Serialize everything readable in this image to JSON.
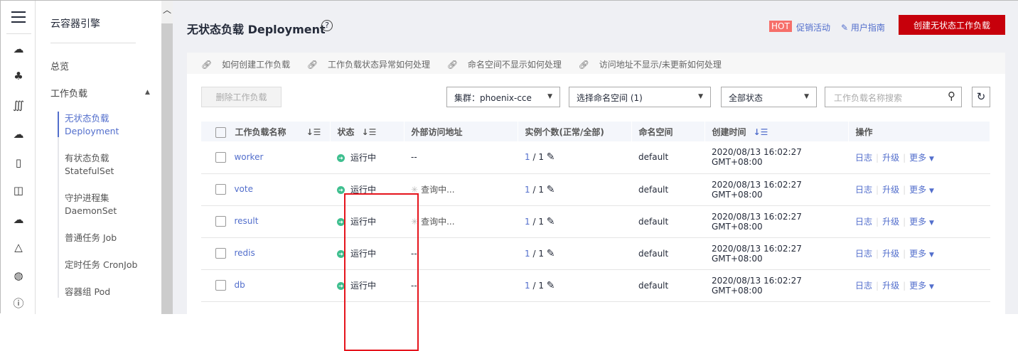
{
  "sidebar_icons": [
    "menu-icon",
    "cloud-server-icon",
    "cluster-icon",
    "nodes-icon",
    "cloud-storage-icon",
    "container-icon",
    "image-icon",
    "cloud-network-icon",
    "mesh-icon",
    "globe-icon",
    "ip-icon"
  ],
  "nav": {
    "title": "云容器引擎",
    "overview": "总览",
    "workload": "工作负载",
    "items": [
      {
        "cn": "无状态负载",
        "en": "Deployment"
      },
      {
        "cn": "有状态负载",
        "en": "StatefulSet"
      },
      {
        "cn": "守护进程集",
        "en": "DaemonSet"
      },
      {
        "cn": "普通任务 Job"
      },
      {
        "cn": "定时任务 CronJob"
      },
      {
        "cn": "容器组 Pod"
      }
    ]
  },
  "header": {
    "title": "无状态负载 Deployment",
    "hot": "HOT",
    "promo": "促销活动",
    "guide": "用户指南",
    "create": "创建无状态工作负载"
  },
  "tips": [
    "如何创建工作负载",
    "工作负载状态异常如何处理",
    "命名空间不显示如何处理",
    "访问地址不显示/未更新如何处理"
  ],
  "toolbar": {
    "delete": "删除工作负载",
    "cluster": "集群：phoenix-cce",
    "namespace": "选择命名空间 (1)",
    "status": "全部状态",
    "search_placeholder": "工作负载名称搜索"
  },
  "columns": [
    "工作负载名称",
    "状态",
    "外部访问地址",
    "实例个数(正常/全部)",
    "命名空间",
    "创建时间",
    "操作"
  ],
  "rows": [
    {
      "name": "worker",
      "status": "运行中",
      "address": "--",
      "normal": "1",
      "total": "/ 1",
      "ns": "default",
      "created": "2020/08/13 16:02:27 GMT+08:00"
    },
    {
      "name": "vote",
      "status": "运行中",
      "address": "查询中...",
      "normal": "1",
      "total": "/ 1",
      "ns": "default",
      "created": "2020/08/13 16:02:27 GMT+08:00"
    },
    {
      "name": "result",
      "status": "运行中",
      "address": "查询中...",
      "normal": "1",
      "total": "/ 1",
      "ns": "default",
      "created": "2020/08/13 16:02:27 GMT+08:00"
    },
    {
      "name": "redis",
      "status": "运行中",
      "address": "--",
      "normal": "1",
      "total": "/ 1",
      "ns": "default",
      "created": "2020/08/13 16:02:27 GMT+08:00"
    },
    {
      "name": "db",
      "status": "运行中",
      "address": "--",
      "normal": "1",
      "total": "/ 1",
      "ns": "default",
      "created": "2020/08/13 16:02:27 GMT+08:00"
    }
  ],
  "ops": {
    "log": "日志",
    "upgrade": "升级",
    "more": "更多"
  },
  "colors": {
    "accent": "#526ecc",
    "primary": "#c7000b",
    "running": "#3fbf8f",
    "highlight": "#e5141c"
  }
}
